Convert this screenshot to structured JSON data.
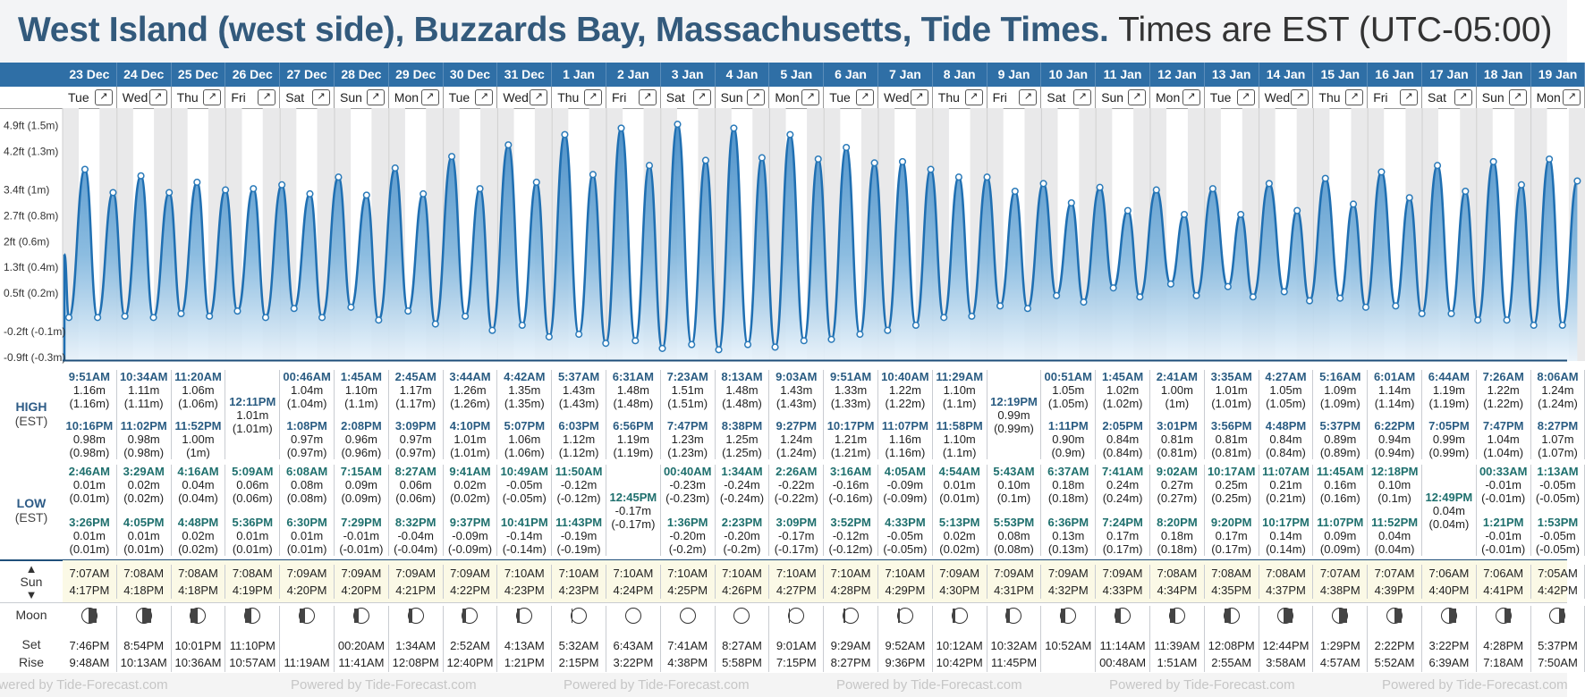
{
  "page": {
    "title": "West Island (west side), Buzzards Bay, Massachusetts, Tide Times.",
    "timezone": "Times are EST (UTC-05:00)"
  },
  "axis_labels": [
    "4.9ft (1.5m)",
    "4.2ft (1.3m)",
    "3.4ft (1m)",
    "2.7ft (0.8m)",
    "2ft (0.6m)",
    "1.3ft (0.4m)",
    "0.5ft (0.2m)",
    "-0.2ft (-0.1m)",
    "-0.9ft (-0.3m)"
  ],
  "row_labels": {
    "high": "HIGH",
    "high_tz": "(EST)",
    "low": "LOW",
    "low_tz": "(EST)",
    "sun": "Sun",
    "moon": "Moon",
    "set": "Set",
    "rise": "Rise"
  },
  "expand_icon": "↗",
  "footer_text": "Powered by Tide-Forecast.com",
  "days": [
    {
      "date": "23 Dec",
      "dow": "Tue",
      "high": [
        [
          "9:51AM",
          "1.16m",
          "(1.16m)"
        ],
        [
          "10:16PM",
          "0.98m",
          "(0.98m)"
        ]
      ],
      "low": [
        [
          "2:46AM",
          "0.01m",
          "(0.01m)"
        ],
        [
          "3:26PM",
          "0.01m",
          "(0.01m)"
        ]
      ],
      "sunrise": "7:07AM",
      "sunset": "4:17PM",
      "moon_phase": 0.55,
      "moonset": "7:46PM",
      "moonrise": "9:48AM"
    },
    {
      "date": "24 Dec",
      "dow": "Wed",
      "high": [
        [
          "10:34AM",
          "1.11m",
          "(1.11m)"
        ],
        [
          "11:02PM",
          "0.98m",
          "(0.98m)"
        ]
      ],
      "low": [
        [
          "3:29AM",
          "0.02m",
          "(0.02m)"
        ],
        [
          "4:05PM",
          "0.01m",
          "(0.01m)"
        ]
      ],
      "sunrise": "7:08AM",
      "sunset": "4:18PM",
      "moon_phase": 0.5,
      "moonset": "8:54PM",
      "moonrise": "10:13AM"
    },
    {
      "date": "25 Dec",
      "dow": "Thu",
      "high": [
        [
          "11:20AM",
          "1.06m",
          "(1.06m)"
        ],
        [
          "11:52PM",
          "1.00m",
          "(1m)"
        ]
      ],
      "low": [
        [
          "4:16AM",
          "0.04m",
          "(0.04m)"
        ],
        [
          "4:48PM",
          "0.02m",
          "(0.02m)"
        ]
      ],
      "sunrise": "7:08AM",
      "sunset": "4:18PM",
      "moon_phase": 0.45,
      "moonset": "10:01PM",
      "moonrise": "10:36AM"
    },
    {
      "date": "26 Dec",
      "dow": "Fri",
      "high": [
        [
          "12:11PM",
          "1.01m",
          "(1.01m)"
        ]
      ],
      "low": [
        [
          "5:09AM",
          "0.06m",
          "(0.06m)"
        ],
        [
          "5:36PM",
          "0.01m",
          "(0.01m)"
        ]
      ],
      "sunrise": "7:08AM",
      "sunset": "4:19PM",
      "moon_phase": 0.4,
      "moonset": "11:10PM",
      "moonrise": "10:57AM"
    },
    {
      "date": "27 Dec",
      "dow": "Sat",
      "high": [
        [
          "00:46AM",
          "1.04m",
          "(1.04m)"
        ],
        [
          "1:08PM",
          "0.97m",
          "(0.97m)"
        ]
      ],
      "low": [
        [
          "6:08AM",
          "0.08m",
          "(0.08m)"
        ],
        [
          "6:30PM",
          "0.01m",
          "(0.01m)"
        ]
      ],
      "sunrise": "7:09AM",
      "sunset": "4:20PM",
      "moon_phase": 0.35,
      "moonset": "",
      "moonrise": "11:19AM"
    },
    {
      "date": "28 Dec",
      "dow": "Sun",
      "high": [
        [
          "1:45AM",
          "1.10m",
          "(1.1m)"
        ],
        [
          "2:08PM",
          "0.96m",
          "(0.96m)"
        ]
      ],
      "low": [
        [
          "7:15AM",
          "0.09m",
          "(0.09m)"
        ],
        [
          "7:29PM",
          "-0.01m",
          "(-0.01m)"
        ]
      ],
      "sunrise": "7:09AM",
      "sunset": "4:20PM",
      "moon_phase": 0.3,
      "moonset": "00:20AM",
      "moonrise": "11:41AM"
    },
    {
      "date": "29 Dec",
      "dow": "Mon",
      "high": [
        [
          "2:45AM",
          "1.17m",
          "(1.17m)"
        ],
        [
          "3:09PM",
          "0.97m",
          "(0.97m)"
        ]
      ],
      "low": [
        [
          "8:27AM",
          "0.06m",
          "(0.06m)"
        ],
        [
          "8:32PM",
          "-0.04m",
          "(-0.04m)"
        ]
      ],
      "sunrise": "7:09AM",
      "sunset": "4:21PM",
      "moon_phase": 0.25,
      "moonset": "1:34AM",
      "moonrise": "12:08PM"
    },
    {
      "date": "30 Dec",
      "dow": "Tue",
      "high": [
        [
          "3:44AM",
          "1.26m",
          "(1.26m)"
        ],
        [
          "4:10PM",
          "1.01m",
          "(1.01m)"
        ]
      ],
      "low": [
        [
          "9:41AM",
          "0.02m",
          "(0.02m)"
        ],
        [
          "9:37PM",
          "-0.09m",
          "(-0.09m)"
        ]
      ],
      "sunrise": "7:09AM",
      "sunset": "4:22PM",
      "moon_phase": 0.2,
      "moonset": "2:52AM",
      "moonrise": "12:40PM"
    },
    {
      "date": "31 Dec",
      "dow": "Wed",
      "high": [
        [
          "4:42AM",
          "1.35m",
          "(1.35m)"
        ],
        [
          "5:07PM",
          "1.06m",
          "(1.06m)"
        ]
      ],
      "low": [
        [
          "10:49AM",
          "-0.05m",
          "(-0.05m)"
        ],
        [
          "10:41PM",
          "-0.14m",
          "(-0.14m)"
        ]
      ],
      "sunrise": "7:10AM",
      "sunset": "4:23PM",
      "moon_phase": 0.15,
      "moonset": "4:13AM",
      "moonrise": "1:21PM"
    },
    {
      "date": "1 Jan",
      "dow": "Thu",
      "high": [
        [
          "5:37AM",
          "1.43m",
          "(1.43m)"
        ],
        [
          "6:03PM",
          "1.12m",
          "(1.12m)"
        ]
      ],
      "low": [
        [
          "11:50AM",
          "-0.12m",
          "(-0.12m)"
        ],
        [
          "11:43PM",
          "-0.19m",
          "(-0.19m)"
        ]
      ],
      "sunrise": "7:10AM",
      "sunset": "4:23PM",
      "moon_phase": 0.08,
      "moonset": "5:32AM",
      "moonrise": "2:15PM"
    },
    {
      "date": "2 Jan",
      "dow": "Fri",
      "high": [
        [
          "6:31AM",
          "1.48m",
          "(1.48m)"
        ],
        [
          "6:56PM",
          "1.19m",
          "(1.19m)"
        ]
      ],
      "low": [
        [
          "12:45PM",
          "-0.17m",
          "(-0.17m)"
        ]
      ],
      "sunrise": "7:10AM",
      "sunset": "4:24PM",
      "moon_phase": 0.0,
      "moonset": "6:43AM",
      "moonrise": "3:22PM"
    },
    {
      "date": "3 Jan",
      "dow": "Sat",
      "high": [
        [
          "7:23AM",
          "1.51m",
          "(1.51m)"
        ],
        [
          "7:47PM",
          "1.23m",
          "(1.23m)"
        ]
      ],
      "low": [
        [
          "00:40AM",
          "-0.23m",
          "(-0.23m)"
        ],
        [
          "1:36PM",
          "-0.20m",
          "(-0.2m)"
        ]
      ],
      "sunrise": "7:10AM",
      "sunset": "4:25PM",
      "moon_phase": 0.0,
      "moonset": "7:41AM",
      "moonrise": "4:38PM"
    },
    {
      "date": "4 Jan",
      "dow": "Sun",
      "high": [
        [
          "8:13AM",
          "1.48m",
          "(1.48m)"
        ],
        [
          "8:38PM",
          "1.25m",
          "(1.25m)"
        ]
      ],
      "low": [
        [
          "1:34AM",
          "-0.24m",
          "(-0.24m)"
        ],
        [
          "2:23PM",
          "-0.20m",
          "(-0.2m)"
        ]
      ],
      "sunrise": "7:10AM",
      "sunset": "4:26PM",
      "moon_phase": 0.0,
      "moonset": "8:27AM",
      "moonrise": "5:58PM"
    },
    {
      "date": "5 Jan",
      "dow": "Mon",
      "high": [
        [
          "9:03AM",
          "1.43m",
          "(1.43m)"
        ],
        [
          "9:27PM",
          "1.24m",
          "(1.24m)"
        ]
      ],
      "low": [
        [
          "2:26AM",
          "-0.22m",
          "(-0.22m)"
        ],
        [
          "3:09PM",
          "-0.17m",
          "(-0.17m)"
        ]
      ],
      "sunrise": "7:10AM",
      "sunset": "4:27PM",
      "moon_phase": 0.05,
      "moonset": "9:01AM",
      "moonrise": "7:15PM"
    },
    {
      "date": "6 Jan",
      "dow": "Tue",
      "high": [
        [
          "9:51AM",
          "1.33m",
          "(1.33m)"
        ],
        [
          "10:17PM",
          "1.21m",
          "(1.21m)"
        ]
      ],
      "low": [
        [
          "3:16AM",
          "-0.16m",
          "(-0.16m)"
        ],
        [
          "3:52PM",
          "-0.12m",
          "(-0.12m)"
        ]
      ],
      "sunrise": "7:10AM",
      "sunset": "4:28PM",
      "moon_phase": 0.1,
      "moonset": "9:29AM",
      "moonrise": "8:27PM"
    },
    {
      "date": "7 Jan",
      "dow": "Wed",
      "high": [
        [
          "10:40AM",
          "1.22m",
          "(1.22m)"
        ],
        [
          "11:07PM",
          "1.16m",
          "(1.16m)"
        ]
      ],
      "low": [
        [
          "4:05AM",
          "-0.09m",
          "(-0.09m)"
        ],
        [
          "4:33PM",
          "-0.05m",
          "(-0.05m)"
        ]
      ],
      "sunrise": "7:10AM",
      "sunset": "4:29PM",
      "moon_phase": 0.15,
      "moonset": "9:52AM",
      "moonrise": "9:36PM"
    },
    {
      "date": "8 Jan",
      "dow": "Thu",
      "high": [
        [
          "11:29AM",
          "1.10m",
          "(1.1m)"
        ],
        [
          "11:58PM",
          "1.10m",
          "(1.1m)"
        ]
      ],
      "low": [
        [
          "4:54AM",
          "0.01m",
          "(0.01m)"
        ],
        [
          "5:13PM",
          "0.02m",
          "(0.02m)"
        ]
      ],
      "sunrise": "7:09AM",
      "sunset": "4:30PM",
      "moon_phase": 0.2,
      "moonset": "10:12AM",
      "moonrise": "10:42PM"
    },
    {
      "date": "9 Jan",
      "dow": "Fri",
      "high": [
        [
          "12:19PM",
          "0.99m",
          "(0.99m)"
        ]
      ],
      "low": [
        [
          "5:43AM",
          "0.10m",
          "(0.1m)"
        ],
        [
          "5:53PM",
          "0.08m",
          "(0.08m)"
        ]
      ],
      "sunrise": "7:09AM",
      "sunset": "4:31PM",
      "moon_phase": 0.25,
      "moonset": "10:32AM",
      "moonrise": "11:45PM"
    },
    {
      "date": "10 Jan",
      "dow": "Sat",
      "high": [
        [
          "00:51AM",
          "1.05m",
          "(1.05m)"
        ],
        [
          "1:11PM",
          "0.90m",
          "(0.9m)"
        ]
      ],
      "low": [
        [
          "6:37AM",
          "0.18m",
          "(0.18m)"
        ],
        [
          "6:36PM",
          "0.13m",
          "(0.13m)"
        ]
      ],
      "sunrise": "7:09AM",
      "sunset": "4:32PM",
      "moon_phase": 0.3,
      "moonset": "10:52AM",
      "moonrise": ""
    },
    {
      "date": "11 Jan",
      "dow": "Sun",
      "high": [
        [
          "1:45AM",
          "1.02m",
          "(1.02m)"
        ],
        [
          "2:05PM",
          "0.84m",
          "(0.84m)"
        ]
      ],
      "low": [
        [
          "7:41AM",
          "0.24m",
          "(0.24m)"
        ],
        [
          "7:24PM",
          "0.17m",
          "(0.17m)"
        ]
      ],
      "sunrise": "7:09AM",
      "sunset": "4:33PM",
      "moon_phase": 0.35,
      "moonset": "11:14AM",
      "moonrise": "00:48AM"
    },
    {
      "date": "12 Jan",
      "dow": "Mon",
      "high": [
        [
          "2:41AM",
          "1.00m",
          "(1m)"
        ],
        [
          "3:01PM",
          "0.81m",
          "(0.81m)"
        ]
      ],
      "low": [
        [
          "9:02AM",
          "0.27m",
          "(0.27m)"
        ],
        [
          "8:20PM",
          "0.18m",
          "(0.18m)"
        ]
      ],
      "sunrise": "7:08AM",
      "sunset": "4:34PM",
      "moon_phase": 0.4,
      "moonset": "11:39AM",
      "moonrise": "1:51AM"
    },
    {
      "date": "13 Jan",
      "dow": "Tue",
      "high": [
        [
          "3:35AM",
          "1.01m",
          "(1.01m)"
        ],
        [
          "3:56PM",
          "0.81m",
          "(0.81m)"
        ]
      ],
      "low": [
        [
          "10:17AM",
          "0.25m",
          "(0.25m)"
        ],
        [
          "9:20PM",
          "0.17m",
          "(0.17m)"
        ]
      ],
      "sunrise": "7:08AM",
      "sunset": "4:35PM",
      "moon_phase": 0.45,
      "moonset": "12:08PM",
      "moonrise": "2:55AM"
    },
    {
      "date": "14 Jan",
      "dow": "Wed",
      "high": [
        [
          "4:27AM",
          "1.05m",
          "(1.05m)"
        ],
        [
          "4:48PM",
          "0.84m",
          "(0.84m)"
        ]
      ],
      "low": [
        [
          "11:07AM",
          "0.21m",
          "(0.21m)"
        ],
        [
          "10:17PM",
          "0.14m",
          "(0.14m)"
        ]
      ],
      "sunrise": "7:08AM",
      "sunset": "4:37PM",
      "moon_phase": 0.5,
      "moonset": "12:44PM",
      "moonrise": "3:58AM"
    },
    {
      "date": "15 Jan",
      "dow": "Thu",
      "high": [
        [
          "5:16AM",
          "1.09m",
          "(1.09m)"
        ],
        [
          "5:37PM",
          "0.89m",
          "(0.89m)"
        ]
      ],
      "low": [
        [
          "11:45AM",
          "0.16m",
          "(0.16m)"
        ],
        [
          "11:07PM",
          "0.09m",
          "(0.09m)"
        ]
      ],
      "sunrise": "7:07AM",
      "sunset": "4:38PM",
      "moon_phase": 0.55,
      "moonset": "1:29PM",
      "moonrise": "4:57AM"
    },
    {
      "date": "16 Jan",
      "dow": "Fri",
      "high": [
        [
          "6:01AM",
          "1.14m",
          "(1.14m)"
        ],
        [
          "6:22PM",
          "0.94m",
          "(0.94m)"
        ]
      ],
      "low": [
        [
          "12:18PM",
          "0.10m",
          "(0.1m)"
        ],
        [
          "11:52PM",
          "0.04m",
          "(0.04m)"
        ]
      ],
      "sunrise": "7:07AM",
      "sunset": "4:39PM",
      "moon_phase": 0.6,
      "moonset": "2:22PM",
      "moonrise": "5:52AM"
    },
    {
      "date": "17 Jan",
      "dow": "Sat",
      "high": [
        [
          "6:44AM",
          "1.19m",
          "(1.19m)"
        ],
        [
          "7:05PM",
          "0.99m",
          "(0.99m)"
        ]
      ],
      "low": [
        [
          "12:49PM",
          "0.04m",
          "(0.04m)"
        ]
      ],
      "sunrise": "7:06AM",
      "sunset": "4:40PM",
      "moon_phase": 0.65,
      "moonset": "3:22PM",
      "moonrise": "6:39AM"
    },
    {
      "date": "18 Jan",
      "dow": "Sun",
      "high": [
        [
          "7:26AM",
          "1.22m",
          "(1.22m)"
        ],
        [
          "7:47PM",
          "1.04m",
          "(1.04m)"
        ]
      ],
      "low": [
        [
          "00:33AM",
          "-0.01m",
          "(-0.01m)"
        ],
        [
          "1:21PM",
          "-0.01m",
          "(-0.01m)"
        ]
      ],
      "sunrise": "7:06AM",
      "sunset": "4:41PM",
      "moon_phase": 0.7,
      "moonset": "4:28PM",
      "moonrise": "7:18AM"
    },
    {
      "date": "19 Jan",
      "dow": "Mon",
      "high": [
        [
          "8:06AM",
          "1.24m",
          "(1.24m)"
        ],
        [
          "8:27PM",
          "1.07m",
          "(1.07m)"
        ]
      ],
      "low": [
        [
          "1:13AM",
          "-0.05m",
          "(-0.05m)"
        ],
        [
          "1:53PM",
          "-0.05m",
          "(-0.05m)"
        ]
      ],
      "sunrise": "7:05AM",
      "sunset": "4:42PM",
      "moon_phase": 0.75,
      "moonset": "5:37PM",
      "moonrise": "7:50AM"
    }
  ]
}
